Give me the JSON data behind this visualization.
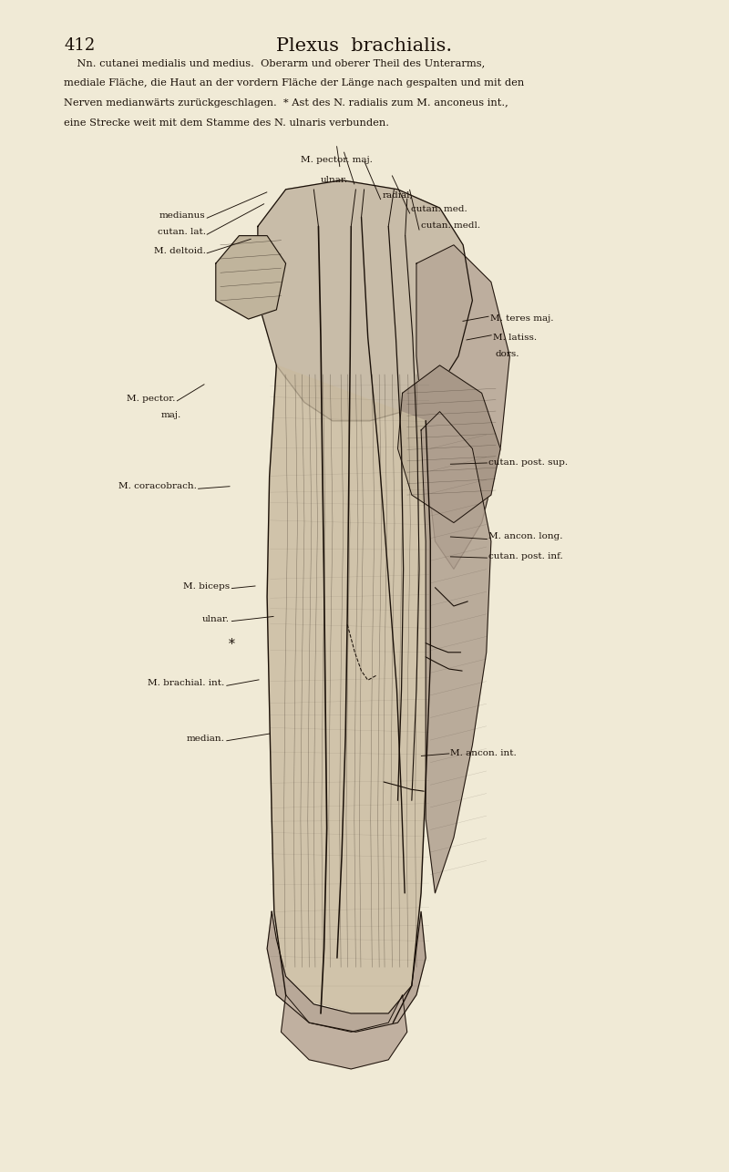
{
  "page_number": "412",
  "title": "Plexus  brachialis.",
  "bg_color": "#f0ead6",
  "text_color": "#1a1008",
  "caption_lines": [
    "    Nn. cutanei medialis und medius.  Oberarm und oberer Theil des Unterarms,",
    "mediale Fläche, die Haut an der vordern Fläche der Länge nach gespalten und mit den",
    "Nerven medianwärts zurückgeschlagen.  * Ast des N. radialis zum M. anconeus int.,",
    "eine Strecke weit mit dem Stamme des N. ulnaris verbunden."
  ],
  "fig_w": 8.0,
  "fig_h": 12.86,
  "dpi": 100
}
